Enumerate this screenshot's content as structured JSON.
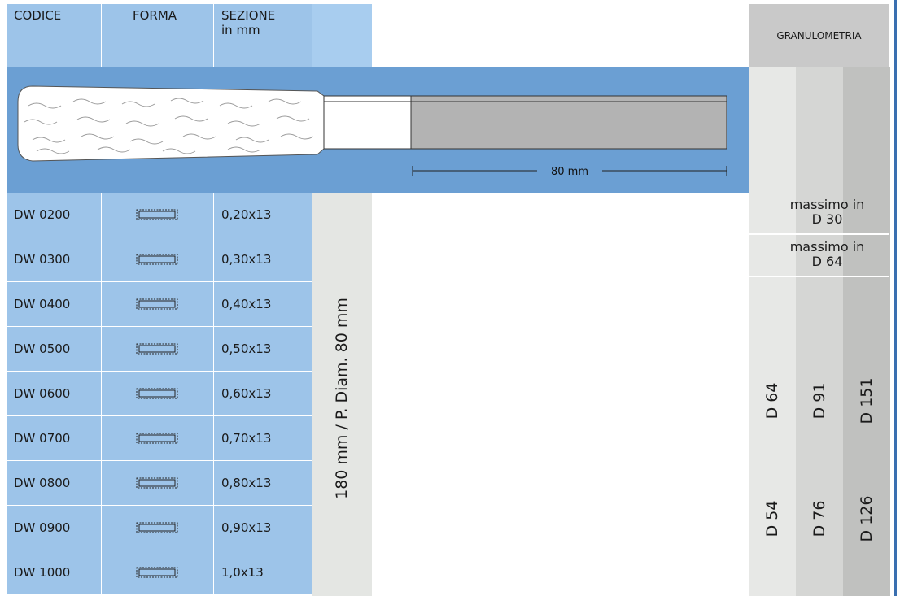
{
  "header": {
    "codice": "CODICE",
    "forma": "FORMA",
    "sezione": [
      "SEZIONE",
      "in mm"
    ],
    "granulometria": "GRANULOMETRIA"
  },
  "image": {
    "dimension": "80 mm"
  },
  "rows": [
    [
      "DW 0200",
      "0,20x13"
    ],
    [
      "DW 0300",
      "0,30x13"
    ],
    [
      "DW 0400",
      "0,40x13"
    ],
    [
      "DW 0500",
      "0,50x13"
    ],
    [
      "DW 0600",
      "0,60x13"
    ],
    [
      "DW 0700",
      "0,70x13"
    ],
    [
      "DW 0800",
      "0,80x13"
    ],
    [
      "DW 0900",
      "0,90x13"
    ],
    [
      "DW 1000",
      "1,0x13"
    ]
  ],
  "note": "180 mm / P. Diam. 80 mm",
  "maximum": [
    [
      "massimo in",
      "D 30"
    ],
    [
      "massimo in",
      "D 64"
    ]
  ],
  "grit": [
    [
      "D 64",
      "D 54"
    ],
    [
      "D 91",
      "D 76"
    ],
    [
      "D 151",
      "D 126"
    ]
  ]
}
